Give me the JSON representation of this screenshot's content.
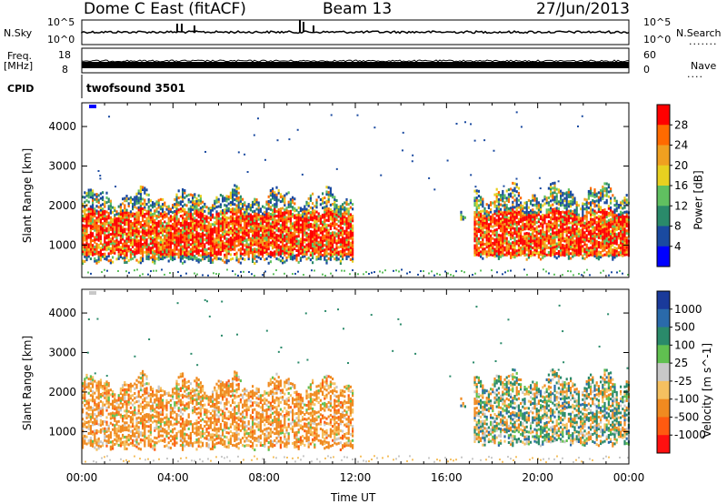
{
  "header": {
    "station": "Dome C East (fitACF)",
    "beam": "Beam 13",
    "date": "27/Jun/2013"
  },
  "top_panels": {
    "nsky_label": "N.Sky",
    "nsky_ticks": [
      "10^5",
      "10^0"
    ],
    "nsearch_label": "N.Search",
    "nsearch_ticks": [
      "10^5",
      "10^0"
    ],
    "freq_label": "Freq.",
    "freq_unit": "[MHz]",
    "freq_ticks": [
      "18",
      "8"
    ],
    "nave_label": "Nave",
    "nave_ticks": [
      "60",
      "0"
    ],
    "cpid_label": "CPID",
    "cpid_value": "twofsound 3501"
  },
  "chart_data": [
    {
      "type": "heatmap",
      "quantity": "Power",
      "ylabel": "Slant Range [km]",
      "ylim": [
        180,
        4600
      ],
      "yticks": [
        1000,
        2000,
        3000,
        4000
      ],
      "colorbar_label": "Power [dB]",
      "colorbar_ticks": [
        "28",
        "24",
        "20",
        "16",
        "12",
        "8",
        "4"
      ],
      "colorbar_colors": [
        "#ff0000",
        "#ff6a00",
        "#f0a020",
        "#e8d020",
        "#60c060",
        "#2a8a6a",
        "#1a4aa0",
        "#0000ff"
      ],
      "echo_regions": [
        {
          "t_start": 0.0,
          "t_end": 11.9,
          "range_low": 500,
          "range_high": 2400,
          "core_low": 700,
          "core_high": 1800
        },
        {
          "t_start": 16.6,
          "t_end": 16.8,
          "range_low": 1500,
          "range_high": 1750
        },
        {
          "t_start": 17.2,
          "t_end": 24.0,
          "range_low": 600,
          "range_high": 2500,
          "core_low": 700,
          "core_high": 1800
        }
      ]
    },
    {
      "type": "heatmap",
      "quantity": "Velocity",
      "ylabel": "Slant Range [km]",
      "ylim": [
        180,
        4600
      ],
      "yticks": [
        1000,
        2000,
        3000,
        4000
      ],
      "colorbar_label": "Velocity [m s^-1]",
      "colorbar_ticks": [
        "1000",
        "500",
        "100",
        "25",
        "-25",
        "-100",
        "-500",
        "-1000"
      ],
      "colorbar_colors": [
        "#1a3a9a",
        "#2a6aaa",
        "#2a8a6a",
        "#60c050",
        "#c8c8c8",
        "#f5c060",
        "#f08a20",
        "#ff5a10",
        "#ff1010"
      ],
      "echo_regions": [
        {
          "t_start": 0.0,
          "t_end": 11.9,
          "range_low": 500,
          "range_high": 2400,
          "dominant": "-100 to -500"
        },
        {
          "t_start": 16.6,
          "t_end": 16.8,
          "range_low": 1500,
          "range_high": 1750
        },
        {
          "t_start": 17.2,
          "t_end": 24.0,
          "range_low": 600,
          "range_high": 2500,
          "dominant": "mixed 25 to -500"
        }
      ]
    }
  ],
  "x_axis": {
    "label": "Time UT",
    "ticks": [
      "00:00",
      "04:00",
      "08:00",
      "12:00",
      "16:00",
      "20:00",
      "00:00"
    ],
    "range_hours": [
      0,
      24
    ]
  },
  "y_axis_label": "Slant Range [km]"
}
